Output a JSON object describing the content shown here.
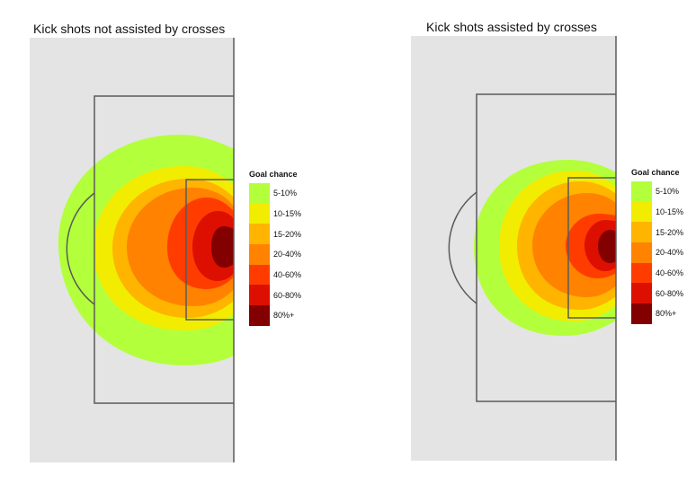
{
  "chart_data": [
    {
      "type": "heatmap",
      "title": "Kick shots not assisted by crosses",
      "legend": {
        "title": "Goal chance",
        "placement": "right",
        "items": [
          {
            "label": "5-10%",
            "color": "#b3ff3c"
          },
          {
            "label": "10-15%",
            "color": "#f2ec00"
          },
          {
            "label": "15-20%",
            "color": "#ffb400"
          },
          {
            "label": "20-40%",
            "color": "#ff8200"
          },
          {
            "label": "40-60%",
            "color": "#ff3c00"
          },
          {
            "label": "60-80%",
            "color": "#dd0f00"
          },
          {
            "label": "80%+",
            "color": "#820000"
          }
        ]
      }
    },
    {
      "type": "heatmap",
      "title": "Kick shots assisted by crosses",
      "legend": {
        "title": "Goal chance",
        "placement": "right",
        "items": [
          {
            "label": "5-10%",
            "color": "#b3ff3c"
          },
          {
            "label": "10-15%",
            "color": "#f2ec00"
          },
          {
            "label": "15-20%",
            "color": "#ffb400"
          },
          {
            "label": "20-40%",
            "color": "#ff8200"
          },
          {
            "label": "40-60%",
            "color": "#ff3c00"
          },
          {
            "label": "60-80%",
            "color": "#dd0f00"
          },
          {
            "label": "80%+",
            "color": "#820000"
          }
        ]
      }
    }
  ],
  "colors": {
    "pitch": "#e4e4e4",
    "lines": "#5a5a5a"
  }
}
